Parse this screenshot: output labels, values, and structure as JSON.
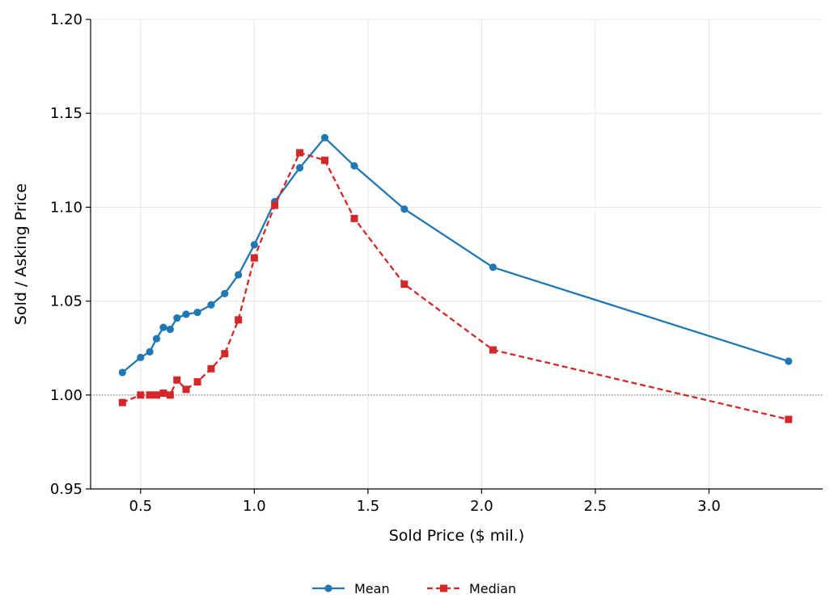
{
  "chart_data": {
    "type": "line",
    "xlabel": "Sold Price ($ mil.)",
    "ylabel": "Sold / Asking Price",
    "xlim": [
      0.28,
      3.5
    ],
    "ylim": [
      0.95,
      1.2
    ],
    "xticks": [
      0.5,
      1.0,
      1.5,
      2.0,
      2.5,
      3.0
    ],
    "xtick_labels": [
      "0.5",
      "1.0",
      "1.5",
      "2.0",
      "2.5",
      "3.0"
    ],
    "yticks": [
      0.95,
      1.0,
      1.05,
      1.1,
      1.15,
      1.2
    ],
    "ytick_labels": [
      "0.95",
      "1.00",
      "1.05",
      "1.10",
      "1.15",
      "1.20"
    ],
    "grid": true,
    "reference_line": 1.0,
    "legend_position": "bottom-center",
    "series": [
      {
        "name": "Mean",
        "color": "#1f77b4",
        "marker": "circle",
        "linestyle": "solid",
        "x": [
          0.42,
          0.5,
          0.54,
          0.57,
          0.6,
          0.63,
          0.66,
          0.7,
          0.75,
          0.81,
          0.87,
          0.93,
          1.0,
          1.09,
          1.2,
          1.31,
          1.44,
          1.66,
          2.05,
          3.35
        ],
        "y": [
          1.012,
          1.02,
          1.023,
          1.03,
          1.036,
          1.035,
          1.041,
          1.043,
          1.044,
          1.048,
          1.054,
          1.064,
          1.08,
          1.103,
          1.121,
          1.137,
          1.122,
          1.099,
          1.068,
          1.018
        ]
      },
      {
        "name": "Median",
        "color": "#d62728",
        "marker": "square",
        "linestyle": "dashed",
        "x": [
          0.42,
          0.5,
          0.54,
          0.57,
          0.6,
          0.63,
          0.66,
          0.7,
          0.75,
          0.81,
          0.87,
          0.93,
          1.0,
          1.09,
          1.2,
          1.31,
          1.44,
          1.66,
          2.05,
          3.35
        ],
        "y": [
          0.996,
          1.0,
          1.0,
          1.0,
          1.001,
          1.0,
          1.008,
          1.003,
          1.007,
          1.014,
          1.022,
          1.04,
          1.073,
          1.101,
          1.129,
          1.125,
          1.094,
          1.059,
          1.024,
          0.987
        ]
      }
    ]
  }
}
